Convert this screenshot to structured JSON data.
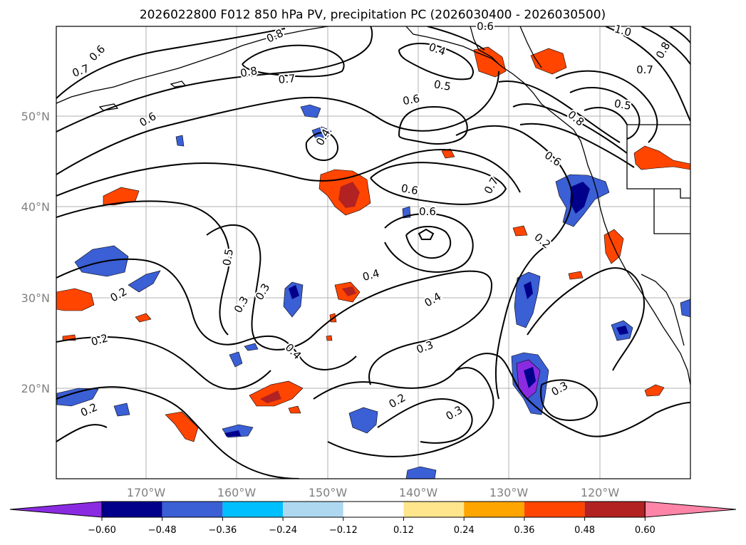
{
  "title": "2026022800 F012 850 hPa PV, precipitation PC (2026030400 - 2026030500)",
  "lat_labels": [
    "50°N",
    "40°N",
    "30°N",
    "20°N"
  ],
  "lon_labels": [
    "170°W",
    "160°W",
    "150°W",
    "140°W",
    "130°W",
    "120°W"
  ],
  "colorbar": {
    "ticks": [
      "−0.60",
      "−0.48",
      "−0.36",
      "−0.24",
      "−0.12",
      "0.12",
      "0.24",
      "0.36",
      "0.48",
      "0.60"
    ],
    "colors": [
      "#8a2be2",
      "#00008b",
      "#3b5fd4",
      "#00bfff",
      "#add8f0",
      "#ffffff",
      "#ffe68c",
      "#ffa500",
      "#ff4500",
      "#b22222",
      "#ff85a8"
    ]
  },
  "contour_labels": [
    "0.6",
    "0.7",
    "0.8",
    "0.8",
    "0.7",
    "0.6",
    "0.4",
    "0.6",
    "0.5",
    "0.6",
    "1.0",
    "0.8",
    "0.7",
    "0.5",
    "0.8",
    "0.4",
    "0.6",
    "0.7",
    "0.6",
    "0.6",
    "0.2",
    "0.5",
    "0.4",
    "0.3",
    "0.2",
    "0.3",
    "0.4",
    "0.4",
    "0.3",
    "0.2",
    "0.2",
    "0.3",
    "0.3",
    "0.2"
  ]
}
